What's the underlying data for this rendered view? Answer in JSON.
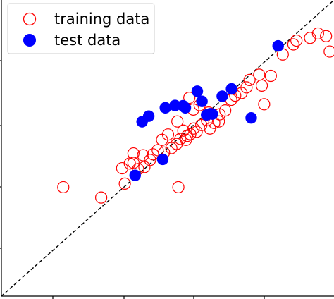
{
  "chart_data": {
    "type": "scatter",
    "title": "",
    "xlabel": "",
    "ylabel": "",
    "xlim": [
      0,
      100
    ],
    "ylim": [
      0,
      100
    ],
    "diagonal_line": {
      "style": "dashed",
      "color": "#000000"
    },
    "legend": {
      "placement": "top-left",
      "entries": [
        {
          "label": "training data",
          "marker": "open-circle",
          "color": "#ff0000"
        },
        {
          "label": "test data",
          "marker": "filled-circle",
          "color": "#0000ff"
        }
      ]
    },
    "series": [
      {
        "name": "training data",
        "marker": "open-circle",
        "color": "#ff0000",
        "points": [
          [
            18.6,
            36.8
          ],
          [
            30.0,
            33.3
          ],
          [
            37.1,
            38.0
          ],
          [
            53.2,
            36.8
          ],
          [
            36.3,
            43.2
          ],
          [
            38.6,
            44.8
          ],
          [
            39.7,
            45.0
          ],
          [
            41.1,
            42.9
          ],
          [
            43.0,
            43.6
          ],
          [
            44.7,
            46.0
          ],
          [
            39.7,
            48.2
          ],
          [
            42.6,
            47.6
          ],
          [
            45.6,
            47.9
          ],
          [
            47.0,
            49.3
          ],
          [
            48.9,
            48.5
          ],
          [
            48.3,
            52.8
          ],
          [
            51.1,
            50.0
          ],
          [
            52.7,
            51.4
          ],
          [
            53.8,
            53.1
          ],
          [
            55.5,
            52.8
          ],
          [
            54.7,
            55.9
          ],
          [
            56.8,
            54.7
          ],
          [
            57.8,
            56.6
          ],
          [
            58.7,
            55.5
          ],
          [
            60.1,
            57.8
          ],
          [
            61.8,
            59.4
          ],
          [
            62.7,
            56.6
          ],
          [
            64.0,
            58.5
          ],
          [
            65.4,
            59.0
          ],
          [
            62.3,
            62.0
          ],
          [
            65.6,
            61.4
          ],
          [
            67.3,
            62.7
          ],
          [
            52.9,
            59.0
          ],
          [
            57.7,
            63.0
          ],
          [
            56.5,
            67.0
          ],
          [
            59.6,
            64.5
          ],
          [
            69.1,
            66.3
          ],
          [
            70.3,
            67.7
          ],
          [
            72.2,
            68.6
          ],
          [
            73.7,
            70.5
          ],
          [
            74.6,
            73.0
          ],
          [
            78.3,
            71.1
          ],
          [
            77.5,
            74.8
          ],
          [
            81.0,
            74.4
          ],
          [
            79.0,
            64.8
          ],
          [
            84.6,
            81.6
          ],
          [
            87.8,
            85.0
          ],
          [
            88.7,
            86.3
          ],
          [
            92.8,
            87.2
          ],
          [
            95.2,
            88.7
          ],
          [
            97.6,
            87.8
          ],
          [
            98.7,
            82.6
          ],
          [
            55.8,
            54.1
          ],
          [
            50.1,
            54.6
          ]
        ]
      },
      {
        "name": "test data",
        "marker": "filled-circle",
        "color": "#0000ff",
        "points": [
          [
            40.2,
            40.8
          ],
          [
            48.5,
            46.2
          ],
          [
            42.3,
            58.9
          ],
          [
            44.3,
            60.8
          ],
          [
            49.3,
            63.6
          ],
          [
            52.2,
            64.4
          ],
          [
            54.6,
            64.3
          ],
          [
            55.3,
            63.6
          ],
          [
            58.9,
            69.2
          ],
          [
            60.3,
            65.8
          ],
          [
            61.7,
            61.2
          ],
          [
            62.8,
            61.6
          ],
          [
            63.4,
            61.5
          ],
          [
            66.4,
            67.5
          ],
          [
            69.2,
            70.0
          ],
          [
            75.1,
            60.2
          ],
          [
            83.2,
            84.5
          ]
        ]
      }
    ]
  }
}
